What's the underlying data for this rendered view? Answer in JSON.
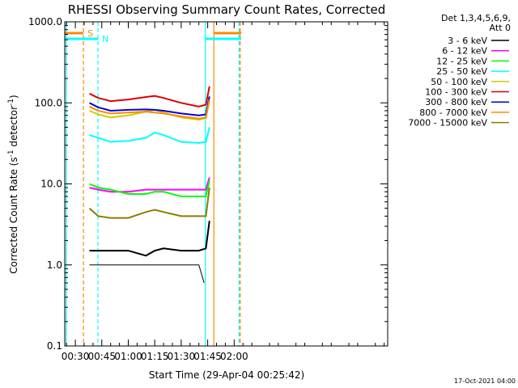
{
  "chart_data": {
    "type": "line",
    "title": "RHESSI Observing Summary Count Rates, Corrected",
    "xlabel": "Start Time (29-Apr-04 00:25:42)",
    "ylabel": "Corrected Count Rate (s",
    "ylabel_sup": "-1",
    "ylabel_mid": " detector",
    "ylabel_end": ")",
    "y_scale": "log",
    "ylim": [
      0.1,
      1000
    ],
    "y_ticks": [
      "0.1",
      "1.0",
      "10.0",
      "100.0",
      "1000.0"
    ],
    "x_range_min": [
      24,
      207
    ],
    "x_ticks": [
      {
        "label": "00:30",
        "min": 30
      },
      {
        "label": "00:45",
        "min": 45
      },
      {
        "label": "01:00",
        "min": 60
      },
      {
        "label": "01:15",
        "min": 75
      },
      {
        "label": "01:30",
        "min": 90
      },
      {
        "label": "01:45",
        "min": 105
      },
      {
        "label": "02:00",
        "min": 120
      }
    ],
    "legend_header": [
      "Det 1,3,4,5,6,9,",
      "Att 0"
    ],
    "legend_placement": "right",
    "series": [
      {
        "name": "3 - 6 keV",
        "color": "#000000"
      },
      {
        "name": "6 - 12 keV",
        "color": "#ff00ff"
      },
      {
        "name": "12 - 25 keV",
        "color": "#00ff00"
      },
      {
        "name": "25 - 50 keV",
        "color": "#00ffff"
      },
      {
        "name": "50 - 100 keV",
        "color": "#d4c800"
      },
      {
        "name": "100 - 300 keV",
        "color": "#dd0000"
      },
      {
        "name": "300 - 800 keV",
        "color": "#0000dd"
      },
      {
        "name": "800 - 7000 keV",
        "color": "#ff8800"
      },
      {
        "name": "7000 - 15000 keV",
        "color": "#8b7d00"
      }
    ],
    "series_points_min": [
      38,
      43,
      50,
      60,
      70,
      75,
      80,
      90,
      100,
      104,
      106
    ],
    "series_values": {
      "3 - 6 keV": [
        1.5,
        1.5,
        1.5,
        1.5,
        1.3,
        1.5,
        1.6,
        1.5,
        1.5,
        1.6,
        3.5
      ],
      "6 - 12 keV": [
        9.0,
        8.5,
        8.0,
        8.0,
        8.5,
        8.5,
        8.5,
        8.5,
        8.5,
        8.5,
        12
      ],
      "12 - 25 keV": [
        10,
        9.0,
        8.5,
        7.5,
        7.5,
        8.0,
        8.0,
        7.0,
        7.0,
        7.0,
        11
      ],
      "25 - 50 keV": [
        40,
        37,
        33,
        34,
        37,
        43,
        40,
        33,
        32,
        33,
        50
      ],
      "50 - 100 keV": [
        80,
        72,
        66,
        70,
        78,
        82,
        76,
        66,
        62,
        65,
        110
      ],
      "100 - 300 keV": [
        130,
        115,
        105,
        110,
        118,
        122,
        115,
        100,
        90,
        95,
        160
      ],
      "300 - 800 keV": [
        100,
        88,
        80,
        82,
        83,
        82,
        80,
        74,
        70,
        72,
        120
      ],
      "800 - 7000 keV": [
        90,
        80,
        74,
        76,
        78,
        76,
        74,
        68,
        64,
        66,
        110
      ],
      "7000 - 15000 keV": [
        5.0,
        4.0,
        3.8,
        3.8,
        4.5,
        4.8,
        4.5,
        4.0,
        4.0,
        4.0,
        9.0
      ]
    },
    "lower_limit_step": {
      "series": "3 - 6 keV",
      "min": [
        38,
        45,
        65,
        80,
        100,
        103
      ],
      "values": [
        1.0,
        1.0,
        1.0,
        1.0,
        1.0,
        0.6
      ]
    },
    "markers": [
      {
        "kind": "cyan-line",
        "min": 24.8,
        "color": "#00ffff",
        "style": "solid"
      },
      {
        "kind": "saa-start",
        "min": 34.6,
        "color": "#ff8800",
        "style": "dashed"
      },
      {
        "kind": "night-start",
        "min": 42.8,
        "color": "#00ffff",
        "style": "dashed"
      },
      {
        "kind": "cyan-line",
        "min": 103.7,
        "color": "#00ffff",
        "style": "solid"
      },
      {
        "kind": "orange-line",
        "min": 108.5,
        "color": "#ff8800",
        "style": "solid"
      },
      {
        "kind": "night-end",
        "min": 122.8,
        "color": "#00ffff",
        "style": "dashed"
      },
      {
        "kind": "saa-end",
        "min": 123.4,
        "color": "#ff8800",
        "style": "dashed"
      }
    ],
    "flag_bars": [
      {
        "label": "S",
        "color": "#ff8800",
        "segments": [
          [
            24,
            34.6
          ],
          [
            108.5,
            124
          ]
        ]
      },
      {
        "label": "N",
        "color": "#00ffff",
        "segments": [
          [
            24,
            42.8
          ],
          [
            103.7,
            124
          ]
        ]
      }
    ],
    "timestamp": "17-Oct-2021 04:00"
  }
}
